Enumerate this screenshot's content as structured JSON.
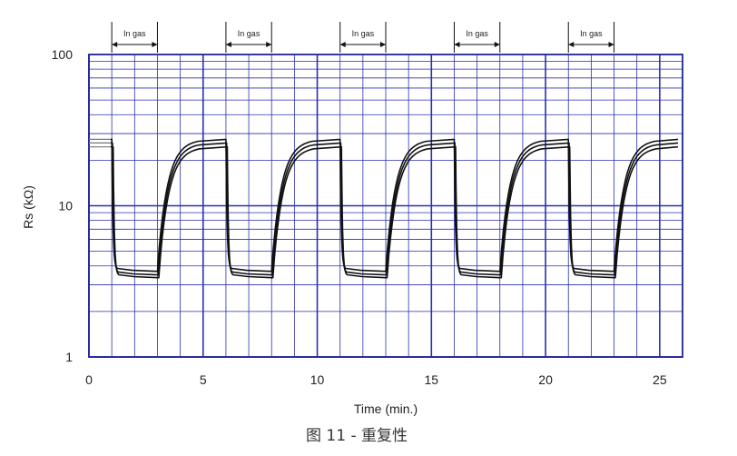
{
  "chart_data": {
    "type": "line",
    "xlabel": "Time (min.)",
    "ylabel": "Rs (kΩ)",
    "caption": "图 11 - 重复性",
    "xlim": [
      0,
      26
    ],
    "ylim": [
      1,
      100
    ],
    "yscale": "log",
    "xticks": [
      "0",
      "5",
      "10",
      "15",
      "20",
      "25"
    ],
    "yticks": [
      "1",
      "10",
      "100"
    ],
    "grid": true,
    "annotation_label": "In gas",
    "gas_intervals": [
      [
        1,
        3
      ],
      [
        6,
        8
      ],
      [
        11,
        13
      ],
      [
        16,
        18
      ],
      [
        21,
        23
      ]
    ],
    "series": [
      {
        "values_air": 27.5,
        "values_gas": 3.8
      },
      {
        "values_air": 26.0,
        "values_gas": 3.6
      },
      {
        "values_air": 24.5,
        "values_gas": 3.45
      }
    ],
    "colors": {
      "grid": "#2a2fb0",
      "frame": "#1f2499",
      "curve": "#111111",
      "annotation": "#111111"
    }
  }
}
